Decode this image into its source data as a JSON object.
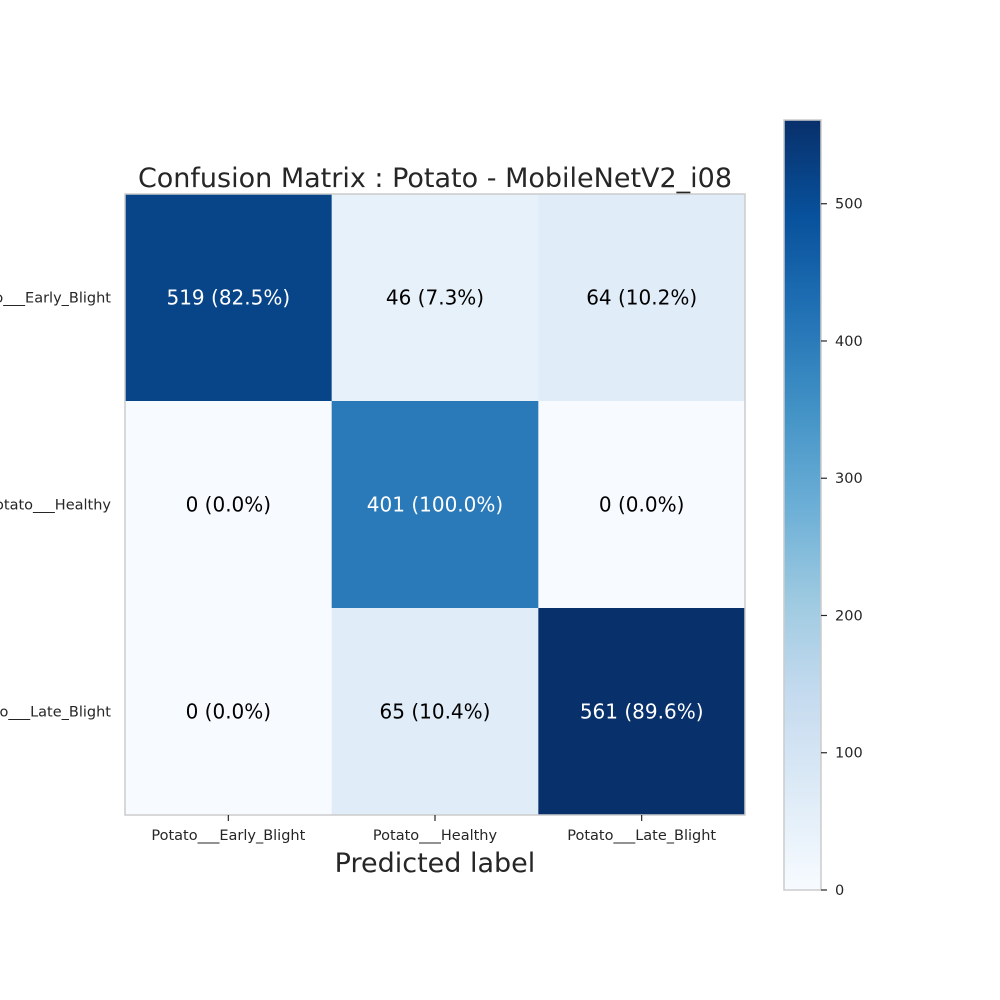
{
  "chart_data": {
    "type": "heatmap",
    "title": "Confusion Matrix : Potato - MobileNetV2_i08",
    "xlabel": "Predicted label",
    "ylabel": "",
    "x_categories": [
      "Potato___Early_Blight",
      "Potato___Healthy",
      "Potato___Late_Blight"
    ],
    "y_categories": [
      "Potato___Early_Blight",
      "Potato___Healthy",
      "Potato___Late_Blight"
    ],
    "values": [
      [
        519,
        46,
        64
      ],
      [
        0,
        401,
        0
      ],
      [
        0,
        65,
        561
      ]
    ],
    "cell_labels": [
      [
        "519 (82.5%)",
        "46 (7.3%)",
        "64 (10.2%)"
      ],
      [
        "0 (0.0%)",
        "401 (100.0%)",
        "0 (0.0%)"
      ],
      [
        "0 (0.0%)",
        "65 (10.4%)",
        "561 (89.6%)"
      ]
    ],
    "colormap": "Blues",
    "colorbar": {
      "range": [
        0,
        561
      ],
      "ticks": [
        0,
        100,
        200,
        300,
        400,
        500
      ]
    },
    "grid": false
  }
}
